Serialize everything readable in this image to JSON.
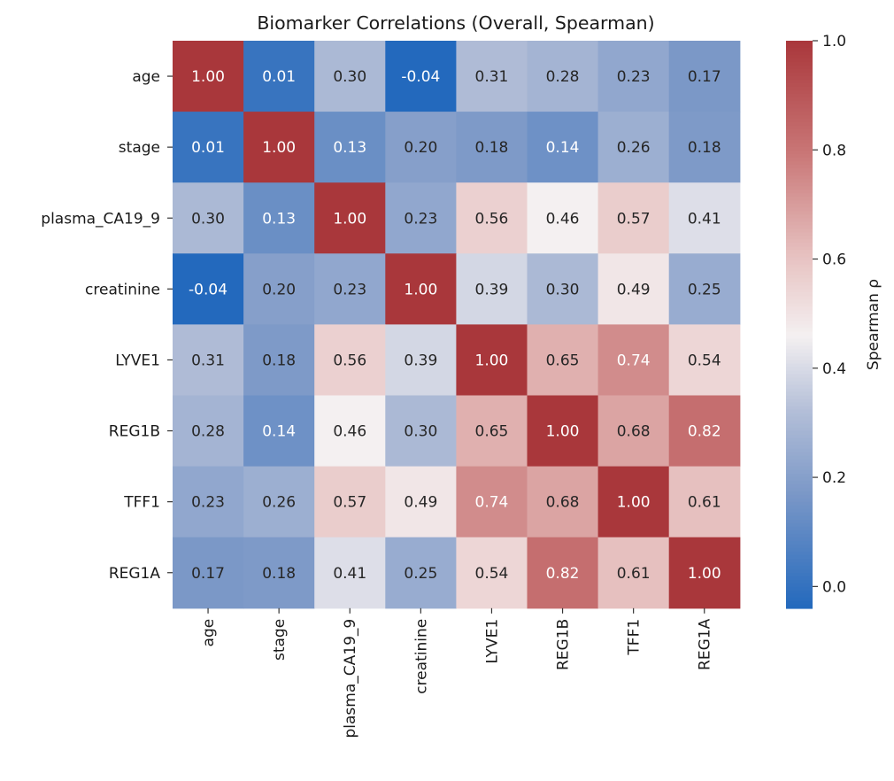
{
  "chart_data": {
    "type": "heatmap",
    "title": "Biomarker Correlations (Overall, Spearman)",
    "xlabel": "",
    "ylabel": "",
    "rows": [
      "age",
      "stage",
      "plasma_CA19_9",
      "creatinine",
      "LYVE1",
      "REG1B",
      "TFF1",
      "REG1A"
    ],
    "columns": [
      "age",
      "stage",
      "plasma_CA19_9",
      "creatinine",
      "LYVE1",
      "REG1B",
      "TFF1",
      "REG1A"
    ],
    "values": [
      [
        1.0,
        0.01,
        0.3,
        -0.04,
        0.31,
        0.28,
        0.23,
        0.17
      ],
      [
        0.01,
        1.0,
        0.13,
        0.2,
        0.18,
        0.14,
        0.26,
        0.18
      ],
      [
        0.3,
        0.13,
        1.0,
        0.23,
        0.56,
        0.46,
        0.57,
        0.41
      ],
      [
        -0.04,
        0.2,
        0.23,
        1.0,
        0.39,
        0.3,
        0.49,
        0.25
      ],
      [
        0.31,
        0.18,
        0.56,
        0.39,
        1.0,
        0.65,
        0.74,
        0.54
      ],
      [
        0.28,
        0.14,
        0.46,
        0.3,
        0.65,
        1.0,
        0.68,
        0.82
      ],
      [
        0.23,
        0.26,
        0.57,
        0.49,
        0.74,
        0.68,
        1.0,
        0.61
      ],
      [
        0.17,
        0.18,
        0.41,
        0.25,
        0.54,
        0.82,
        0.61,
        1.0
      ]
    ],
    "value_format": "0.00",
    "colormap": "vlag",
    "colorbar": {
      "label": "Spearman ρ",
      "range": [
        -0.04,
        1.0
      ],
      "ticks": [
        0.0,
        0.2,
        0.4,
        0.6,
        0.8,
        1.0
      ],
      "tick_labels": [
        "0.0",
        "0.2",
        "0.4",
        "0.6",
        "0.8",
        "1.0"
      ],
      "colors": {
        "low": "#2369bd",
        "mid": "#f7f3f2",
        "high": "#a9373b"
      },
      "placement": "right"
    },
    "grid": false
  }
}
